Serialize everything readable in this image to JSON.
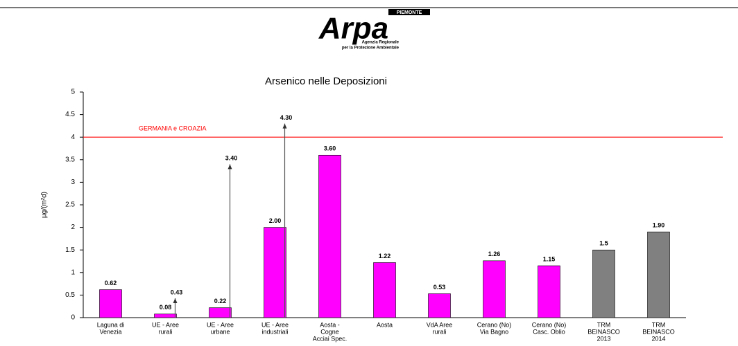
{
  "header": {
    "logo": "Arpa",
    "region": "PIEMONTE",
    "subtitle": [
      "Agenzia Regionale",
      "per la Protezione Ambientale"
    ]
  },
  "chart_data": {
    "type": "bar",
    "title": "Arsenico nelle Deposizioni",
    "y_label": "µg/(m²d)",
    "categories": [
      [
        "Laguna di",
        "Venezia"
      ],
      [
        "UE - Aree",
        "rurali"
      ],
      [
        "UE - Aree",
        "urbane"
      ],
      [
        "UE - Aree",
        "industriali"
      ],
      [
        "Aosta -",
        "Cogne",
        "Acciai Spec."
      ],
      [
        "Aosta"
      ],
      [
        "VdA Aree",
        "rurali"
      ],
      [
        "Cerano (No)",
        "Via Bagno"
      ],
      [
        "Cerano (No)",
        "Casc. Oblio"
      ],
      [
        "TRM",
        "BEINASCO",
        "2013"
      ],
      [
        "TRM",
        "BEINASCO",
        "2014"
      ]
    ],
    "values": [
      0.62,
      0.08,
      0.22,
      2.0,
      3.6,
      1.22,
      0.53,
      1.26,
      1.15,
      1.5,
      1.9
    ],
    "value_labels": [
      "0.62",
      "0.08",
      "0.22",
      "2.00",
      "3.60",
      "1.22",
      "0.53",
      "1.26",
      "1.15",
      "1.5",
      "1.90"
    ],
    "max_values": [
      null,
      0.43,
      3.4,
      4.3,
      null,
      null,
      null,
      null,
      null,
      null,
      null
    ],
    "max_value_labels": [
      null,
      "0.43",
      "3.40",
      "4.30",
      null,
      null,
      null,
      null,
      null,
      null,
      null
    ],
    "colors": [
      "#ff00ff",
      "#ff00ff",
      "#ff00ff",
      "#ff00ff",
      "#ff00ff",
      "#ff00ff",
      "#ff00ff",
      "#ff00ff",
      "#ff00ff",
      "#808080",
      "#808080"
    ],
    "reference_line": {
      "value": 4,
      "label": "GERMANIA e CROAZIA",
      "color": "#ff0000"
    },
    "ylim": [
      0,
      5
    ],
    "yticks": [
      0,
      0.5,
      1,
      1.5,
      2,
      2.5,
      3,
      3.5,
      4,
      4.5,
      5
    ],
    "grid": false
  }
}
